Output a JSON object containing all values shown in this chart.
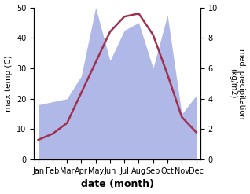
{
  "months": [
    "Jan",
    "Feb",
    "Mar",
    "Apr",
    "May",
    "Jun",
    "Jul",
    "Aug",
    "Sep",
    "Oct",
    "Nov",
    "Dec"
  ],
  "month_positions": [
    0,
    1,
    2,
    3,
    4,
    5,
    6,
    7,
    8,
    9,
    10,
    11
  ],
  "temperature": [
    6.5,
    8.5,
    12,
    22,
    32,
    42,
    47,
    48,
    41,
    28,
    14,
    9
  ],
  "precipitation": [
    3.6,
    3.8,
    4.0,
    5.5,
    10.0,
    6.5,
    8.5,
    9.0,
    6.0,
    9.5,
    3.0,
    4.2
  ],
  "temp_color": "#a03050",
  "precip_color": "#b0b8e8",
  "background_color": "#ffffff",
  "xlabel": "date (month)",
  "ylabel_left": "max temp (C)",
  "ylabel_right": "med. precipitation\n(kg/m2)",
  "ylim_left": [
    0,
    50
  ],
  "ylim_right": [
    0,
    10
  ],
  "yticks_left": [
    0,
    10,
    20,
    30,
    40,
    50
  ],
  "yticks_right": [
    0,
    2,
    4,
    6,
    8,
    10
  ],
  "figsize": [
    3.18,
    2.47
  ],
  "dpi": 100
}
